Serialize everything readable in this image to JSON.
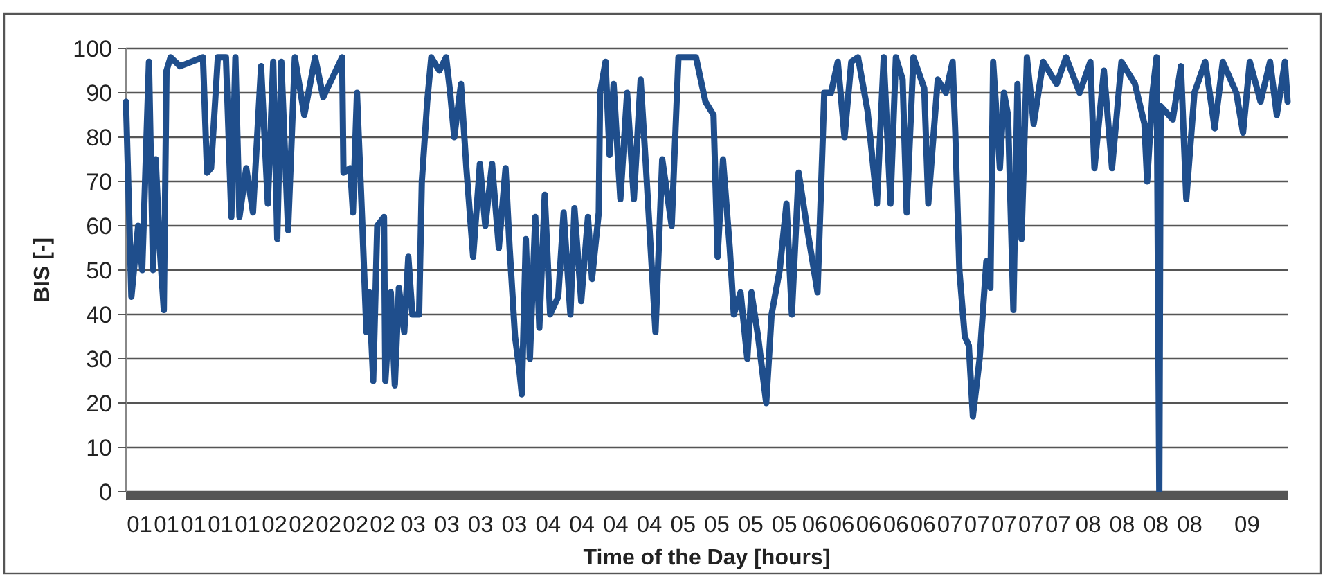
{
  "chart_data": {
    "type": "line",
    "xlabel": "Time of the Day [hours]",
    "ylabel": "BIS [-]",
    "xlim": [
      0.5,
      9.1
    ],
    "xticks": [
      {
        "value": 0.6,
        "label": "01"
      },
      {
        "value": 0.8,
        "label": "01"
      },
      {
        "value": 1.0,
        "label": "01"
      },
      {
        "value": 1.2,
        "label": "01"
      },
      {
        "value": 1.4,
        "label": "01"
      },
      {
        "value": 1.6,
        "label": "02"
      },
      {
        "value": 1.8,
        "label": "02"
      },
      {
        "value": 2.0,
        "label": "02"
      },
      {
        "value": 2.2,
        "label": "02"
      },
      {
        "value": 2.4,
        "label": "02"
      },
      {
        "value": 2.625,
        "label": "03"
      },
      {
        "value": 2.875,
        "label": "03"
      },
      {
        "value": 3.125,
        "label": "03"
      },
      {
        "value": 3.375,
        "label": "03"
      },
      {
        "value": 3.625,
        "label": "04"
      },
      {
        "value": 3.875,
        "label": "04"
      },
      {
        "value": 4.125,
        "label": "04"
      },
      {
        "value": 4.375,
        "label": "04"
      },
      {
        "value": 4.625,
        "label": "05"
      },
      {
        "value": 4.875,
        "label": "05"
      },
      {
        "value": 5.125,
        "label": "05"
      },
      {
        "value": 5.375,
        "label": "05"
      },
      {
        "value": 5.6,
        "label": "06"
      },
      {
        "value": 5.8,
        "label": "06"
      },
      {
        "value": 6.0,
        "label": "06"
      },
      {
        "value": 6.2,
        "label": "06"
      },
      {
        "value": 6.4,
        "label": "06"
      },
      {
        "value": 6.6,
        "label": "07"
      },
      {
        "value": 6.8,
        "label": "07"
      },
      {
        "value": 7.0,
        "label": "07"
      },
      {
        "value": 7.2,
        "label": "07"
      },
      {
        "value": 7.4,
        "label": "07"
      },
      {
        "value": 7.625,
        "label": "08"
      },
      {
        "value": 7.875,
        "label": "08"
      },
      {
        "value": 8.125,
        "label": "08"
      },
      {
        "value": 8.375,
        "label": "08"
      },
      {
        "value": 8.8,
        "label": "09"
      }
    ],
    "ylim": [
      0,
      100
    ],
    "yticks": [
      0,
      10,
      20,
      30,
      40,
      50,
      60,
      70,
      80,
      90,
      100
    ],
    "grid": "y",
    "marker": "none",
    "line_style": "solid",
    "series": [
      {
        "color": "#1f4e8c",
        "x": [
          0.5,
          0.54,
          0.59,
          0.62,
          0.67,
          0.7,
          0.72,
          0.75,
          0.78,
          0.8,
          0.83,
          0.9,
          1.07,
          1.1,
          1.13,
          1.18,
          1.24,
          1.28,
          1.31,
          1.34,
          1.39,
          1.44,
          1.5,
          1.55,
          1.59,
          1.62,
          1.65,
          1.7,
          1.75,
          1.82,
          1.9,
          1.96,
          2.1,
          2.11,
          2.16,
          2.18,
          2.21,
          2.25,
          2.28,
          2.3,
          2.33,
          2.36,
          2.41,
          2.42,
          2.46,
          2.49,
          2.52,
          2.56,
          2.59,
          2.62,
          2.67,
          2.69,
          2.73,
          2.76,
          2.82,
          2.87,
          2.9,
          2.93,
          2.98,
          3.02,
          3.07,
          3.12,
          3.16,
          3.21,
          3.26,
          3.31,
          3.34,
          3.38,
          3.41,
          3.43,
          3.46,
          3.49,
          3.53,
          3.56,
          3.6,
          3.64,
          3.7,
          3.74,
          3.79,
          3.82,
          3.87,
          3.92,
          3.95,
          4.0,
          4.01,
          4.05,
          4.08,
          4.11,
          4.16,
          4.21,
          4.26,
          4.31,
          4.35,
          4.42,
          4.47,
          4.54,
          4.59,
          4.72,
          4.79,
          4.85,
          4.88,
          4.92,
          4.97,
          5.0,
          5.05,
          5.1,
          5.13,
          5.18,
          5.24,
          5.28,
          5.34,
          5.39,
          5.43,
          5.48,
          5.54,
          5.62,
          5.67,
          5.72,
          5.77,
          5.82,
          5.87,
          5.92,
          5.99,
          6.06,
          6.11,
          6.16,
          6.2,
          6.25,
          6.28,
          6.33,
          6.41,
          6.44,
          6.51,
          6.57,
          6.62,
          6.64,
          6.67,
          6.71,
          6.74,
          6.77,
          6.82,
          6.87,
          6.9,
          6.92,
          6.97,
          7.0,
          7.03,
          7.07,
          7.1,
          7.13,
          7.17,
          7.22,
          7.29,
          7.39,
          7.46,
          7.56,
          7.64,
          7.67,
          7.74,
          7.8,
          7.87,
          7.97,
          8.04,
          8.06,
          8.1,
          8.13,
          8.15,
          8.16,
          8.25,
          8.31,
          8.35,
          8.41,
          8.49,
          8.56,
          8.62,
          8.72,
          8.77,
          8.82,
          8.9,
          8.97,
          9.02,
          9.08,
          9.1
        ],
        "values": [
          88,
          44,
          60,
          50,
          97,
          50,
          75,
          55,
          41,
          95,
          98,
          96,
          98,
          72,
          73,
          98,
          98,
          62,
          98,
          62,
          73,
          63,
          96,
          65,
          97,
          57,
          97,
          59,
          98,
          85,
          98,
          89,
          98,
          72,
          73,
          63,
          90,
          60,
          36,
          45,
          25,
          60,
          62,
          25,
          45,
          24,
          46,
          36,
          53,
          40,
          40,
          70,
          88,
          98,
          95,
          98,
          90,
          80,
          92,
          73,
          53,
          74,
          60,
          74,
          55,
          73,
          55,
          35,
          28,
          22,
          57,
          30,
          62,
          37,
          67,
          40,
          44,
          63,
          40,
          64,
          43,
          62,
          48,
          63,
          90,
          97,
          76,
          92,
          66,
          90,
          66,
          93,
          73,
          36,
          75,
          60,
          98,
          98,
          88,
          85,
          53,
          75,
          55,
          40,
          45,
          30,
          45,
          35,
          20,
          40,
          50,
          65,
          40,
          72,
          60,
          45,
          90,
          90,
          97,
          80,
          97,
          98,
          86,
          65,
          98,
          65,
          98,
          93,
          63,
          98,
          91,
          65,
          93,
          90,
          97,
          81,
          50,
          35,
          33,
          17,
          30,
          52,
          46,
          97,
          73,
          90,
          85,
          41,
          92,
          57,
          98,
          83,
          97,
          92,
          98,
          90,
          97,
          73,
          95,
          73,
          97,
          92,
          83,
          70,
          90,
          98,
          0,
          87,
          84,
          96,
          66,
          90,
          97,
          82,
          97,
          90,
          81,
          97,
          88,
          97,
          85,
          97,
          88
        ]
      }
    ]
  }
}
